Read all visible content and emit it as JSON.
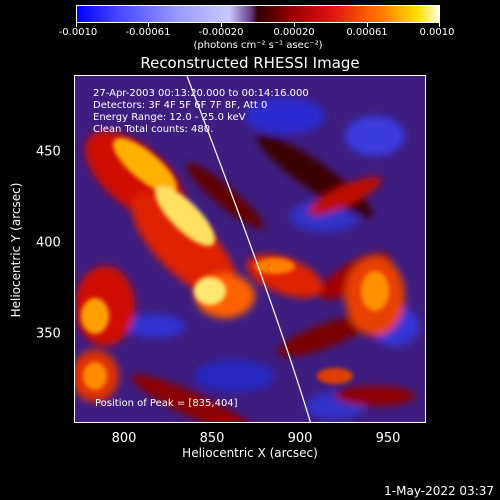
{
  "colorbar": {
    "ticks": [
      "-0.0010",
      "-0.00061",
      "-0.00020",
      "0.00020",
      "0.00061",
      "0.0010"
    ],
    "units": "(photons cm⁻² s⁻¹ asec⁻²)"
  },
  "title": "Reconstructed RHESSI Image",
  "annotations": {
    "time": "27-Apr-2003 00:13:20.000 to 00:14:16.000",
    "detectors": "Detectors: 3F 4F 5F 6F 7F 8F, Att 0",
    "energy": "Energy Range: 12.0 - 25.0 keV",
    "clean": "Clean    Total counts: 480.",
    "peak": "Position of Peak = [835,404]"
  },
  "axes": {
    "xlabel": "Heliocentric X (arcsec)",
    "ylabel": "Heliocentric Y (arcsec)",
    "xticks": [
      "800",
      "850",
      "900",
      "950"
    ],
    "yticks": [
      "450",
      "400",
      "350"
    ]
  },
  "datestamp": "1-May-2022 03:37"
}
